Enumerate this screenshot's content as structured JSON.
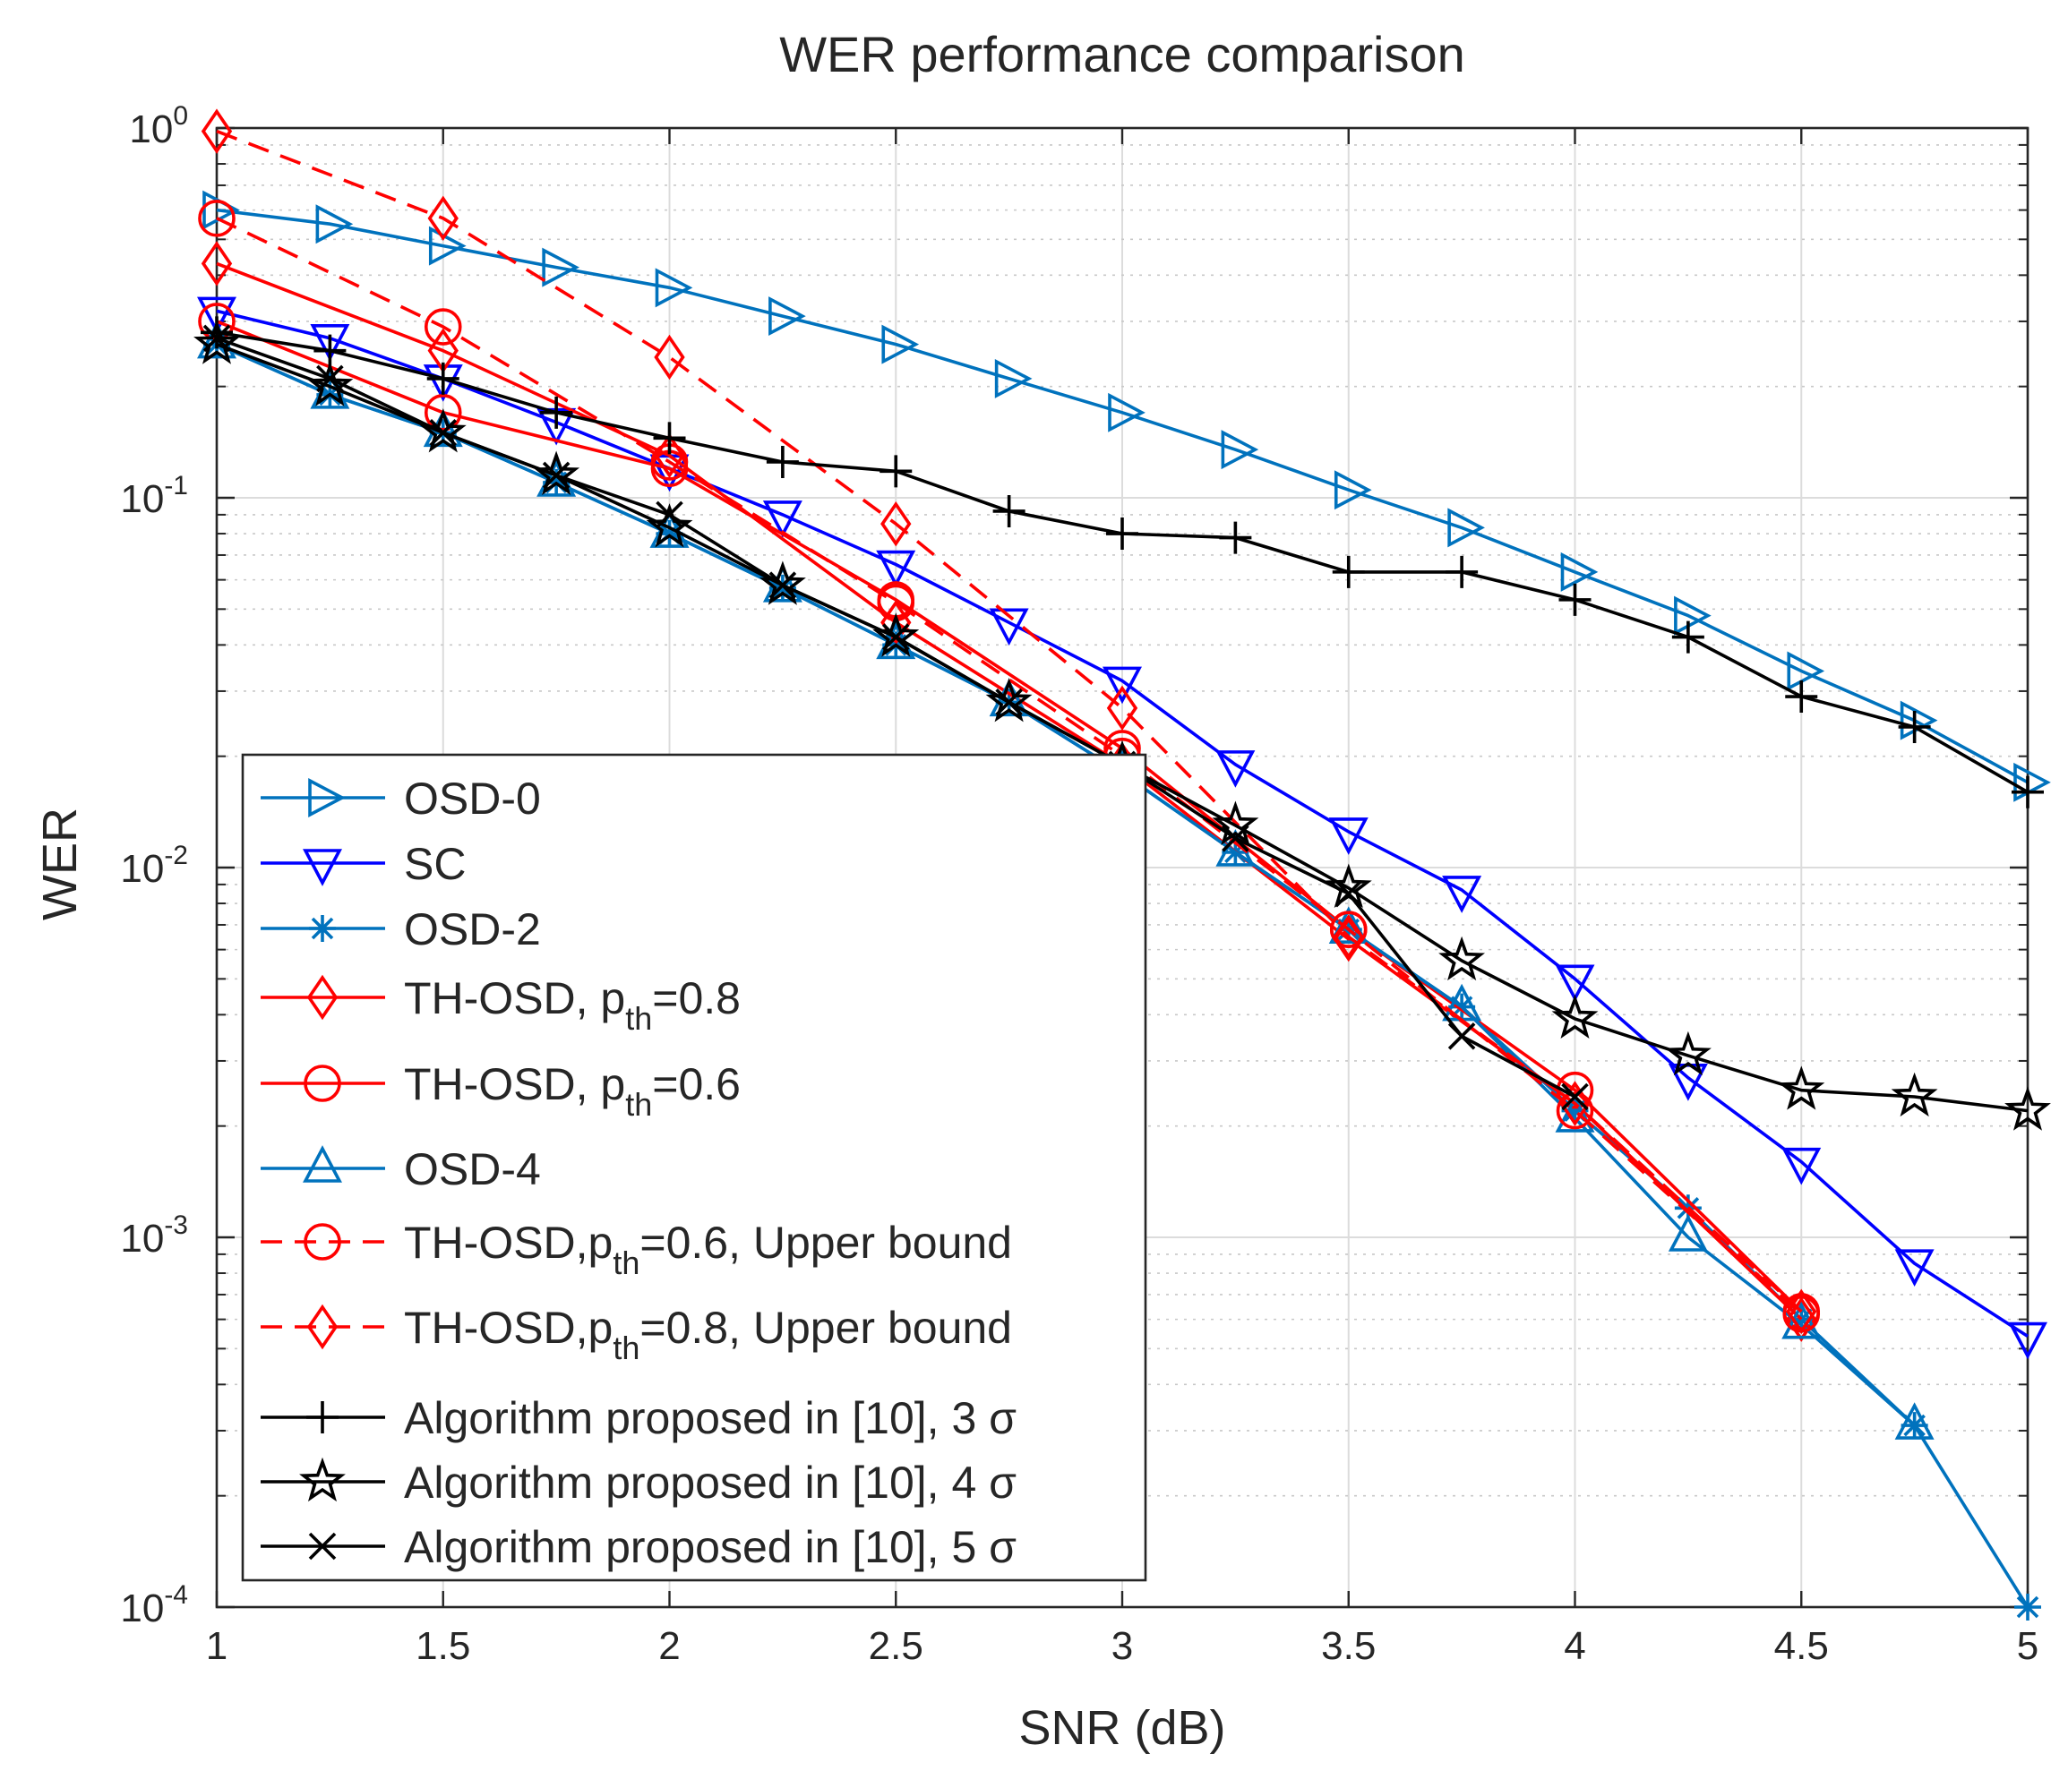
{
  "title": "WER performance comparison",
  "chart_data": {
    "type": "line",
    "title": "WER performance comparison",
    "xlabel": "SNR (dB)",
    "ylabel": "WER",
    "xlim": [
      1,
      5
    ],
    "ylim": [
      0.0001,
      1
    ],
    "yscale": "log",
    "grid": true,
    "legend_position": "bottom-left",
    "x_ticks": [
      "1",
      "1.5",
      "2",
      "2.5",
      "3",
      "3.5",
      "4",
      "4.5",
      "5"
    ],
    "y_ticks": [
      {
        "value": 1,
        "base": "10",
        "exp": "0"
      },
      {
        "value": 0.1,
        "base": "10",
        "exp": "-1"
      },
      {
        "value": 0.01,
        "base": "10",
        "exp": "-2"
      },
      {
        "value": 0.001,
        "base": "10",
        "exp": "-3"
      },
      {
        "value": 0.0001,
        "base": "10",
        "exp": "-4"
      }
    ],
    "series": [
      {
        "name": "OSD-0",
        "legend": {
          "main": "OSD-0"
        },
        "color": "#0072BD",
        "marker": "triangle-right",
        "dash": "solid",
        "x": [
          1,
          1.25,
          1.5,
          1.75,
          2,
          2.25,
          2.5,
          2.75,
          3,
          3.25,
          3.5,
          3.75,
          4,
          4.25,
          4.5,
          4.75,
          5
        ],
        "y": [
          0.6,
          0.55,
          0.48,
          0.42,
          0.37,
          0.31,
          0.26,
          0.21,
          0.17,
          0.135,
          0.105,
          0.083,
          0.063,
          0.048,
          0.034,
          0.025,
          0.017
        ]
      },
      {
        "name": "SC",
        "legend": {
          "main": "SC"
        },
        "color": "#0000FF",
        "marker": "triangle-down",
        "dash": "solid",
        "x": [
          1,
          1.25,
          1.5,
          1.75,
          2,
          2.25,
          2.5,
          2.75,
          3,
          3.25,
          3.5,
          3.75,
          4,
          4.25,
          4.5,
          4.75,
          5
        ],
        "y": [
          0.32,
          0.27,
          0.21,
          0.16,
          0.12,
          0.09,
          0.066,
          0.046,
          0.032,
          0.019,
          0.0125,
          0.0087,
          0.005,
          0.0027,
          0.0016,
          0.00085,
          0.00054
        ]
      },
      {
        "name": "OSD-2",
        "legend": {
          "main": "OSD-2"
        },
        "color": "#0072BD",
        "marker": "asterisk",
        "dash": "solid",
        "x": [
          1,
          1.25,
          1.5,
          1.75,
          2,
          2.25,
          2.5,
          2.75,
          3,
          3.25,
          3.5,
          3.75,
          4,
          4.25,
          4.5,
          4.75,
          5
        ],
        "y": [
          0.26,
          0.19,
          0.15,
          0.11,
          0.08,
          0.057,
          0.04,
          0.028,
          0.018,
          0.011,
          0.0068,
          0.0042,
          0.0022,
          0.0012,
          0.0006,
          0.00031,
          0.0001
        ]
      },
      {
        "name": "TH-OSD, pth=0.8",
        "legend": {
          "main": "TH-OSD, p",
          "sub": "th",
          "rest": "=0.8"
        },
        "color": "#FF0000",
        "marker": "diamond",
        "dash": "solid",
        "x": [
          1,
          1.5,
          2,
          2.5,
          3,
          3.5,
          4,
          4.5
        ],
        "y": [
          0.43,
          0.25,
          0.13,
          0.046,
          0.019,
          0.0064,
          0.0023,
          0.0006
        ]
      },
      {
        "name": "TH-OSD, pth=0.6",
        "legend": {
          "main": "TH-OSD, p",
          "sub": "th",
          "rest": "=0.6"
        },
        "color": "#FF0000",
        "marker": "circle",
        "dash": "solid",
        "x": [
          1,
          1.5,
          2,
          2.5,
          3,
          3.5,
          4,
          4.5
        ],
        "y": [
          0.3,
          0.17,
          0.12,
          0.053,
          0.021,
          0.0068,
          0.0025,
          0.00063
        ]
      },
      {
        "name": "OSD-4",
        "legend": {
          "main": "OSD-4"
        },
        "color": "#0072BD",
        "marker": "triangle-up",
        "dash": "solid",
        "x": [
          1,
          1.25,
          1.5,
          1.75,
          2,
          2.25,
          2.5,
          2.75,
          3,
          3.25,
          3.5,
          3.75,
          4,
          4.25,
          4.5,
          4.75
        ],
        "y": [
          0.26,
          0.19,
          0.15,
          0.11,
          0.08,
          0.057,
          0.04,
          0.028,
          0.018,
          0.011,
          0.0068,
          0.0042,
          0.0021,
          0.001,
          0.00058,
          0.00031
        ]
      },
      {
        "name": "TH-OSD,pth=0.6, Upper bound",
        "legend": {
          "main": "TH-OSD,p",
          "sub": "th",
          "rest": "=0.6, Upper bound"
        },
        "color": "#FF0000",
        "marker": "circle",
        "dash": "dashed",
        "x": [
          1,
          1.5,
          2,
          2.5,
          3,
          3.5,
          4,
          4.5
        ],
        "y": [
          0.57,
          0.29,
          0.125,
          0.052,
          0.02,
          0.0068,
          0.0022,
          0.00062
        ]
      },
      {
        "name": "TH-OSD,pth=0.8, Upper bound",
        "legend": {
          "main": "TH-OSD,p",
          "sub": "th",
          "rest": "=0.8, Upper bound"
        },
        "color": "#FF0000",
        "marker": "diamond",
        "dash": "dashed",
        "x": [
          1,
          1.5,
          2,
          2.5,
          3,
          3.5,
          4,
          4.5
        ],
        "y": [
          0.98,
          0.57,
          0.24,
          0.085,
          0.027,
          0.0065,
          0.0023,
          0.00063
        ]
      },
      {
        "name": "Algorithm proposed in [10], 3σ",
        "legend": {
          "main": "Algorithm proposed in [10], 3 σ"
        },
        "color": "#000000",
        "marker": "plus",
        "dash": "solid",
        "x": [
          1,
          1.25,
          1.5,
          1.75,
          2,
          2.25,
          2.5,
          2.75,
          3,
          3.25,
          3.5,
          3.75,
          4,
          4.25,
          4.5,
          4.75,
          5
        ],
        "y": [
          0.28,
          0.25,
          0.21,
          0.17,
          0.145,
          0.125,
          0.118,
          0.092,
          0.08,
          0.078,
          0.063,
          0.063,
          0.053,
          0.042,
          0.029,
          0.024,
          0.016
        ]
      },
      {
        "name": "Algorithm proposed in [10], 4σ",
        "legend": {
          "main": "Algorithm proposed in [10], 4 σ"
        },
        "color": "#000000",
        "marker": "star",
        "dash": "solid",
        "x": [
          1,
          1.25,
          1.5,
          1.75,
          2,
          2.25,
          2.5,
          2.75,
          3,
          3.25,
          3.5,
          3.75,
          4,
          4.25,
          4.5,
          4.75,
          5
        ],
        "y": [
          0.26,
          0.2,
          0.15,
          0.115,
          0.083,
          0.058,
          0.042,
          0.028,
          0.019,
          0.013,
          0.0088,
          0.0056,
          0.0039,
          0.0031,
          0.0025,
          0.0024,
          0.0022
        ]
      },
      {
        "name": "Algorithm proposed in [10], 5σ",
        "legend": {
          "main": "Algorithm proposed in [10], 5 σ"
        },
        "color": "#000000",
        "marker": "x",
        "dash": "solid",
        "x": [
          1,
          1.25,
          1.5,
          1.75,
          2,
          2.25,
          2.5,
          2.75,
          3,
          3.25,
          3.5,
          3.75,
          4
        ],
        "y": [
          0.27,
          0.21,
          0.15,
          0.115,
          0.09,
          0.058,
          0.042,
          0.028,
          0.019,
          0.012,
          0.0085,
          0.0035,
          0.0024
        ]
      }
    ]
  }
}
